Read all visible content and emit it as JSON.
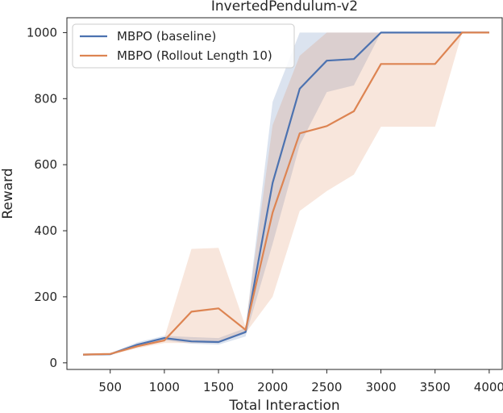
{
  "chart_data": {
    "type": "line",
    "title": "InvertedPendulum-v2",
    "xlabel": "Total Interaction",
    "ylabel": "Reward",
    "xlim": [
      100,
      4120
    ],
    "ylim": [
      -20,
      1045
    ],
    "xticks": [
      500,
      1000,
      1500,
      2000,
      2500,
      3000,
      3500,
      4000
    ],
    "xtick_labels": [
      "500",
      "1000",
      "1500",
      "2000",
      "2500",
      "3000",
      "3500",
      "4000"
    ],
    "yticks": [
      0,
      200,
      400,
      600,
      800,
      1000
    ],
    "ytick_labels": [
      "0",
      "200",
      "400",
      "600",
      "800",
      "1000"
    ],
    "grid": false,
    "legend_position": "top-left",
    "series": [
      {
        "name": "MBPO (baseline)",
        "color": "#4c72b0",
        "x": [
          250,
          500,
          750,
          1000,
          1250,
          1500,
          1750,
          2000,
          2250,
          2500,
          2750,
          3000,
          3250,
          3500,
          3750,
          4000
        ],
        "y": [
          25,
          26,
          55,
          75,
          65,
          63,
          93,
          545,
          830,
          915,
          920,
          1000,
          1000,
          1000,
          1000,
          1000
        ],
        "lower": [
          22,
          24,
          50,
          68,
          58,
          55,
          80,
          360,
          660,
          820,
          840,
          1000,
          1000,
          1000,
          1000,
          1000
        ],
        "upper": [
          28,
          29,
          62,
          82,
          78,
          75,
          105,
          790,
          1000,
          1000,
          1000,
          1000,
          1000,
          1000,
          1000,
          1000
        ]
      },
      {
        "name": "MBPO (Rollout Length 10)",
        "color": "#dd8452",
        "x": [
          250,
          500,
          750,
          1000,
          1250,
          1500,
          1750,
          2000,
          2250,
          2500,
          2750,
          3000,
          3250,
          3500,
          3750,
          4000
        ],
        "y": [
          25,
          27,
          50,
          68,
          155,
          165,
          100,
          455,
          695,
          717,
          762,
          905,
          905,
          905,
          1000,
          1000
        ],
        "lower": [
          22,
          24,
          44,
          60,
          60,
          60,
          90,
          200,
          460,
          520,
          570,
          715,
          715,
          715,
          1000,
          1000
        ],
        "upper": [
          28,
          30,
          56,
          76,
          345,
          348,
          110,
          720,
          930,
          1000,
          1000,
          1000,
          1000,
          1000,
          1000,
          1000
        ]
      }
    ]
  }
}
